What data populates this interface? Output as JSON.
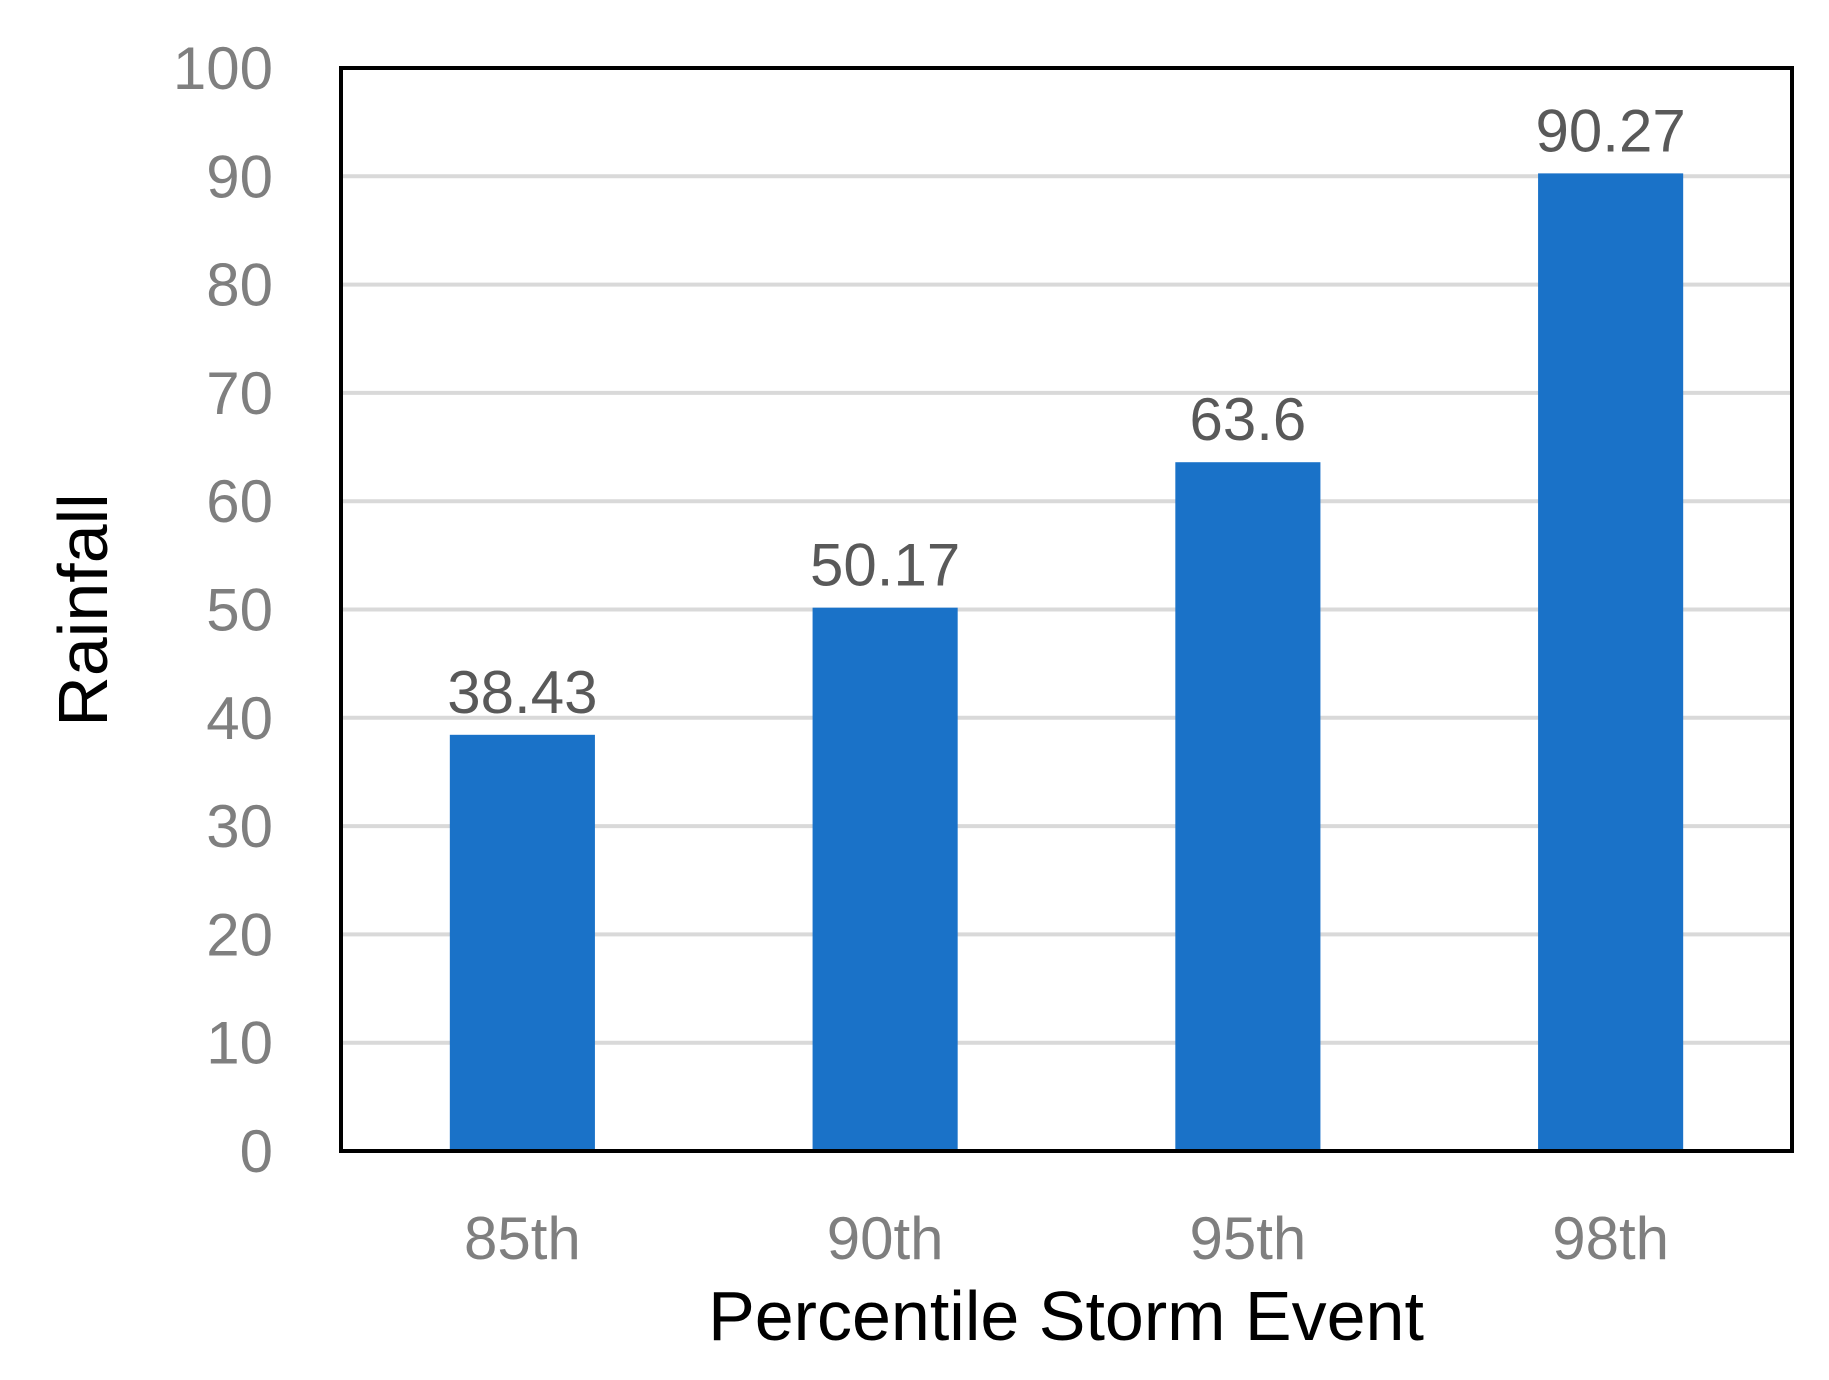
{
  "chart_data": {
    "type": "bar",
    "categories": [
      "85th",
      "90th",
      "95th",
      "98th"
    ],
    "series": [
      {
        "values": [
          38.43,
          50.17,
          63.6,
          90.27
        ],
        "data_labels": [
          "38.43",
          "50.17",
          "63.6",
          "90.27"
        ],
        "color": "#1a72c8"
      }
    ],
    "title": "",
    "xlabel": "Percentile Storm Event",
    "ylabel": "Rainfall",
    "ylim": [
      0,
      100
    ],
    "yticks": [
      0,
      10,
      20,
      30,
      40,
      50,
      60,
      70,
      80,
      90,
      100
    ],
    "ytick_labels": [
      "0",
      "10",
      "20",
      "30",
      "40",
      "50",
      "60",
      "70",
      "80",
      "90",
      "100"
    ],
    "grid": true,
    "legend": "none",
    "colors": {
      "bar": "#1a72c8",
      "gridline": "#d9d9d9",
      "frame": "#000000",
      "tick_text": "#7f7f7f",
      "data_label_text": "#595959",
      "axis_title_text": "#000000"
    }
  }
}
